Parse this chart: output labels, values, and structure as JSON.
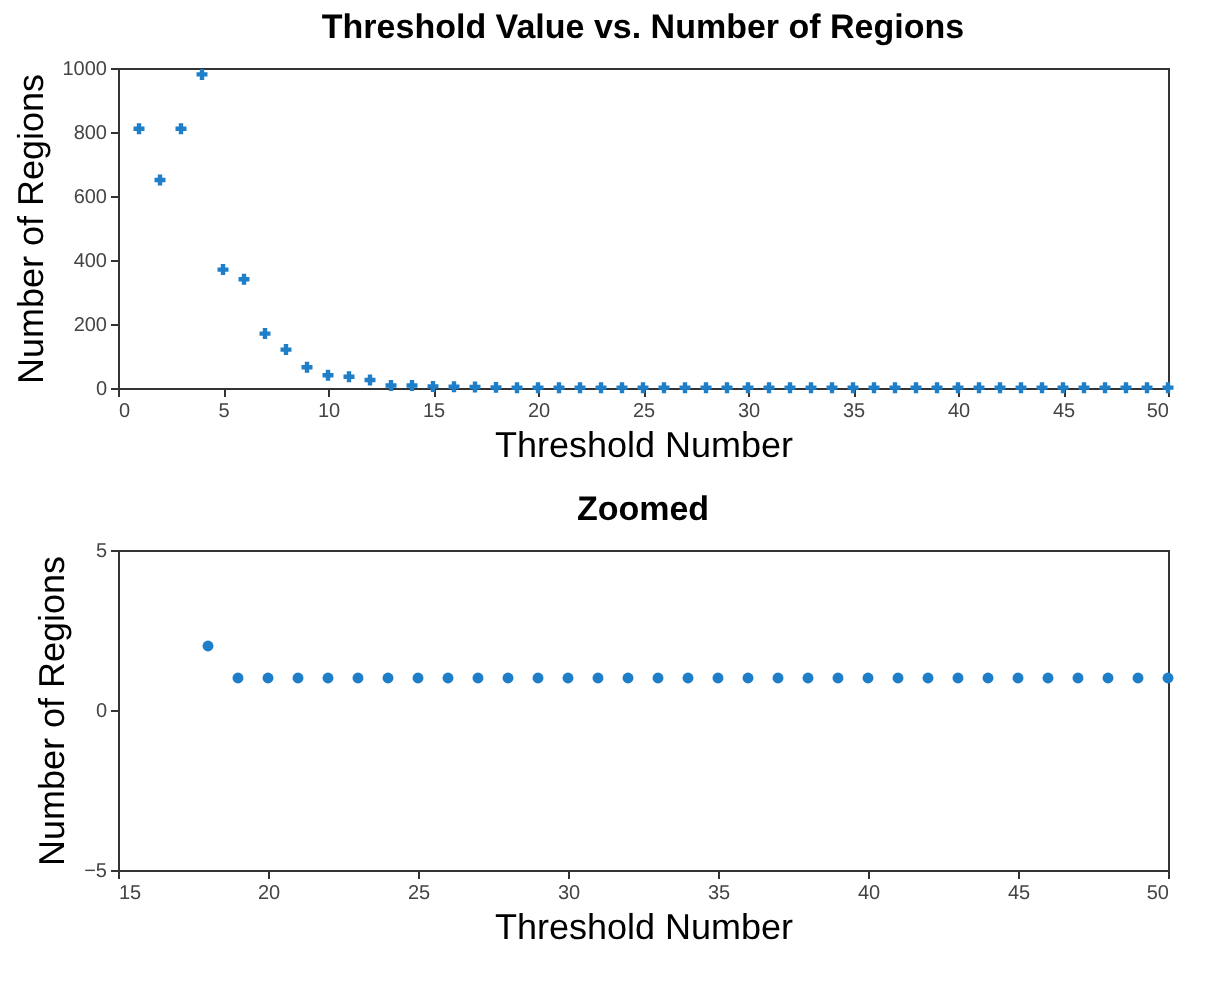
{
  "chart_data": [
    {
      "type": "scatter",
      "title": "Threshold Value vs. Number of Regions",
      "xlabel": "Threshold Number",
      "ylabel": "Number of Regions",
      "marker": "cross",
      "grid": false,
      "x": [
        1,
        2,
        3,
        4,
        5,
        6,
        7,
        8,
        9,
        10,
        11,
        12,
        13,
        14,
        15,
        16,
        17,
        18,
        19,
        20,
        21,
        22,
        23,
        24,
        25,
        26,
        27,
        28,
        29,
        30,
        31,
        32,
        33,
        34,
        35,
        36,
        37,
        38,
        39,
        40,
        41,
        42,
        43,
        44,
        45,
        46,
        47,
        48,
        49,
        50
      ],
      "series": [
        {
          "color": "#1f7ec8",
          "values": [
            810,
            650,
            810,
            980,
            370,
            340,
            170,
            120,
            65,
            40,
            35,
            25,
            8,
            8,
            5,
            4,
            3,
            2,
            1,
            1,
            1,
            1,
            1,
            1,
            1,
            1,
            1,
            1,
            1,
            1,
            1,
            1,
            1,
            1,
            1,
            1,
            1,
            1,
            1,
            1,
            1,
            1,
            1,
            1,
            1,
            1,
            1,
            1,
            1,
            1
          ]
        }
      ],
      "xlim": [
        0,
        50
      ],
      "xticks": [
        0,
        5,
        10,
        15,
        20,
        25,
        30,
        35,
        40,
        45,
        50
      ],
      "ylim": [
        0,
        1000
      ],
      "yticks": [
        0,
        200,
        400,
        600,
        800,
        1000
      ]
    },
    {
      "type": "scatter",
      "title": "Zoomed",
      "xlabel": "Threshold Number",
      "ylabel": "Number of Regions",
      "marker": "circle",
      "grid": false,
      "x": [
        18,
        19,
        20,
        21,
        22,
        23,
        24,
        25,
        26,
        27,
        28,
        29,
        30,
        31,
        32,
        33,
        34,
        35,
        36,
        37,
        38,
        39,
        40,
        41,
        42,
        43,
        44,
        45,
        46,
        47,
        48,
        49,
        50
      ],
      "series": [
        {
          "color": "#1f7ec8",
          "values": [
            2,
            1,
            1,
            1,
            1,
            1,
            1,
            1,
            1,
            1,
            1,
            1,
            1,
            1,
            1,
            1,
            1,
            1,
            1,
            1,
            1,
            1,
            1,
            1,
            1,
            1,
            1,
            1,
            1,
            1,
            1,
            1,
            1
          ]
        }
      ],
      "xlim": [
        15,
        50
      ],
      "xticks": [
        15,
        20,
        25,
        30,
        35,
        40,
        45,
        50
      ],
      "ylim": [
        -5,
        5
      ],
      "yticks": [
        -5,
        0,
        5
      ]
    }
  ]
}
